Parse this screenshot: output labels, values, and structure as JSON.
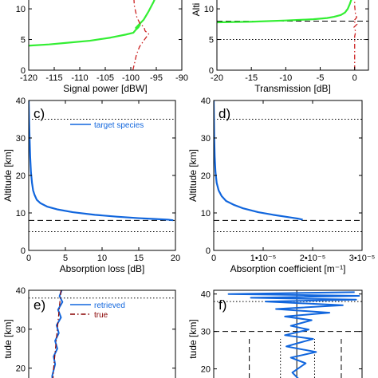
{
  "colors": {
    "green": "#33ee33",
    "blue": "#1166dd",
    "red": "#cc2222",
    "darkred": "#880000",
    "black": "#000000"
  },
  "chart_data": [
    {
      "id": "a",
      "type": "line",
      "letter": "",
      "xlabel": "Signal power [dBW]",
      "ylabel": "",
      "xlim": [
        -120,
        -90
      ],
      "ylim": [
        0,
        13
      ],
      "xticks": [
        -120,
        -115,
        -110,
        -105,
        -100,
        -95,
        -90
      ],
      "yticks": [
        0,
        5,
        10
      ],
      "reflines": [],
      "series": [
        {
          "color": "green",
          "style": "solid",
          "width": 2.2,
          "x": [
            -120,
            -116,
            -112,
            -108,
            -104,
            -101,
            -99.5,
            -99,
            -98.5,
            -98.2,
            -99,
            -98.2,
            -97.5,
            -96.5,
            -95.5,
            -95,
            -94.5
          ],
          "y": [
            4.0,
            4.2,
            4.5,
            4.8,
            5.3,
            5.8,
            6.1,
            6.6,
            7.0,
            7.4,
            6.9,
            7.6,
            8.2,
            9.6,
            11.2,
            12.2,
            13
          ]
        },
        {
          "color": "red",
          "style": "dashdot",
          "width": 1.3,
          "x": [
            -99.6,
            -99.3,
            -98.9,
            -98.3,
            -97.3,
            -96.5,
            -97.2,
            -97.4,
            -98.2,
            -98.8,
            -99.3,
            -99.5
          ],
          "y": [
            0,
            1.0,
            2.5,
            3.8,
            5.0,
            5.9,
            6.4,
            7.0,
            7.6,
            8.6,
            10.5,
            13
          ]
        }
      ]
    },
    {
      "id": "b",
      "type": "line",
      "letter": "",
      "xlabel": "Transmission [dB]",
      "ylabel": "Alti",
      "xlim": [
        -20,
        2
      ],
      "ylim": [
        0,
        13
      ],
      "xticks": [
        -20,
        -15,
        -10,
        -5,
        0
      ],
      "yticks": [
        0,
        5,
        10
      ],
      "reflines": [
        {
          "axis": "y",
          "value": 8,
          "style": "dash"
        },
        {
          "axis": "y",
          "value": 5,
          "style": "dot"
        }
      ],
      "series": [
        {
          "color": "green",
          "style": "solid",
          "width": 2.2,
          "x": [
            -20,
            -15,
            -10,
            -6,
            -4,
            -3,
            -2,
            -1.4,
            -1.0,
            -0.7,
            -0.45,
            -0.25,
            -0.1
          ],
          "y": [
            7.8,
            7.9,
            8.1,
            8.3,
            8.5,
            8.7,
            9.0,
            9.4,
            10.0,
            10.8,
            11.6,
            12.3,
            13
          ]
        },
        {
          "color": "red",
          "style": "dashdot",
          "width": 1.3,
          "x": [
            0,
            0,
            0.15,
            -0.1,
            0.35,
            -0.15,
            0.3,
            0.1,
            0,
            0
          ],
          "y": [
            0,
            5.5,
            6.3,
            7.0,
            7.5,
            8.0,
            8.6,
            9.3,
            10.5,
            13
          ]
        }
      ]
    },
    {
      "id": "c",
      "type": "line",
      "letter": "c)",
      "xlabel": "Absorption loss [dB]",
      "ylabel": "Altitude [km]",
      "xlim": [
        0,
        20
      ],
      "ylim": [
        0,
        40
      ],
      "xticks": [
        0,
        5,
        10,
        15,
        20
      ],
      "yticks": [
        0,
        10,
        20,
        30,
        40
      ],
      "reflines": [
        {
          "axis": "y",
          "value": 35,
          "style": "dot"
        },
        {
          "axis": "y",
          "value": 8,
          "style": "dash"
        },
        {
          "axis": "y",
          "value": 5,
          "style": "dot"
        }
      ],
      "legend": [
        {
          "color": "blue",
          "style": "solid",
          "label": "target species"
        }
      ],
      "series": [
        {
          "color": "blue",
          "style": "solid",
          "width": 2.2,
          "x": [
            0,
            0.05,
            0.12,
            0.2,
            0.3,
            0.45,
            0.6,
            0.8,
            1.1,
            1.6,
            2.5,
            4,
            6,
            9,
            12,
            15,
            17,
            19,
            19.7
          ],
          "y": [
            40,
            35,
            30,
            25,
            21,
            18,
            16,
            14.8,
            13.5,
            12.6,
            11.7,
            10.9,
            10.2,
            9.5,
            9.0,
            8.6,
            8.4,
            8.2,
            8.05
          ]
        }
      ]
    },
    {
      "id": "d",
      "type": "line",
      "letter": "d)",
      "xlabel": "Absorption coefficient [m⁻¹]",
      "ylabel": "Altitude [km]",
      "xlim": [
        0,
        3e-05
      ],
      "ylim": [
        0,
        40
      ],
      "xticks": [
        0,
        1e-05,
        2e-05,
        3e-05
      ],
      "xticklabels": [
        "0",
        "1•10⁻⁵",
        "2•10⁻⁵",
        "3•10⁻⁵"
      ],
      "yticks": [
        0,
        10,
        20,
        30,
        40
      ],
      "reflines": [
        {
          "axis": "y",
          "value": 35,
          "style": "dot"
        },
        {
          "axis": "y",
          "value": 8,
          "style": "dash"
        },
        {
          "axis": "y",
          "value": 5,
          "style": "dot"
        }
      ],
      "series": [
        {
          "color": "blue",
          "style": "solid",
          "width": 2.2,
          "x": [
            0,
            5e-08,
            1e-07,
            2e-07,
            3.5e-07,
            6e-07,
            1e-06,
            1.6e-06,
            2.5e-06,
            4e-06,
            6e-06,
            9e-06,
            1.2e-05,
            1.5e-05,
            1.7e-05,
            1.8e-05
          ],
          "y": [
            40,
            35,
            30,
            25,
            21,
            18,
            16,
            14.5,
            13.2,
            12.2,
            11.2,
            10.2,
            9.5,
            8.9,
            8.5,
            8.2
          ]
        }
      ]
    },
    {
      "id": "e",
      "type": "line",
      "letter": "e)",
      "xlabel": "",
      "ylabel": "tude [km]",
      "xlim": [
        0,
        20
      ],
      "ylim": [
        15,
        40
      ],
      "xticks": [],
      "yticks": [
        20,
        30,
        40
      ],
      "reflines": [
        {
          "axis": "y",
          "value": 38,
          "style": "dot"
        }
      ],
      "legend": [
        {
          "color": "blue",
          "style": "solid",
          "label": "retrieved"
        },
        {
          "color": "darkred",
          "style": "dashdot",
          "label": "true"
        }
      ],
      "series": [
        {
          "color": "blue",
          "style": "solid",
          "width": 2.0,
          "x": [
            4.5,
            4.2,
            4.6,
            4.0,
            4.4,
            3.8,
            4.1,
            3.6,
            3.9,
            3.4,
            3.6,
            3.2,
            3.3
          ],
          "y": [
            40,
            38.5,
            37,
            35,
            33,
            31,
            29,
            27,
            25,
            23,
            21,
            18,
            15
          ]
        },
        {
          "color": "darkred",
          "style": "dashdot",
          "width": 1.2,
          "x": [
            4.4,
            4.3,
            4.2,
            4.1,
            4.0,
            3.9,
            3.8,
            3.7,
            3.6,
            3.5,
            3.4,
            3.3,
            3.2
          ],
          "y": [
            40,
            38,
            36,
            34,
            32,
            30,
            28,
            26,
            24,
            22,
            20,
            17,
            15
          ]
        }
      ]
    },
    {
      "id": "f",
      "type": "line",
      "letter": "f)",
      "xlabel": "",
      "ylabel": "tude [km]",
      "xlim": [
        0,
        10
      ],
      "ylim": [
        15,
        41
      ],
      "xticks": [],
      "yticks": [
        20,
        30,
        40
      ],
      "reflines": [
        {
          "axis": "y",
          "value": 38,
          "style": "dot"
        },
        {
          "axis": "y",
          "value": 30,
          "style": "dash"
        },
        {
          "axis": "x",
          "value": 2.4,
          "style": "dash",
          "from": 15,
          "to": 28
        },
        {
          "axis": "x",
          "value": 4.5,
          "style": "dot",
          "from": 15,
          "to": 28
        },
        {
          "axis": "x",
          "value": 6.8,
          "style": "dot",
          "from": 15,
          "to": 28
        },
        {
          "axis": "x",
          "value": 8.6,
          "style": "dash",
          "from": 15,
          "to": 28
        },
        {
          "axis": "x",
          "value": 5.6,
          "style": "solid",
          "from": 15,
          "to": 41
        }
      ],
      "series": [
        {
          "color": "blue",
          "style": "solid",
          "width": 2.0,
          "x": [
            9.5,
            1.0,
            9.8,
            2.5,
            9.6,
            3.5,
            8.7,
            4.2,
            7.8,
            4.8,
            6.6,
            5.2,
            6.4,
            4.8,
            6.7,
            4.9,
            6.9,
            5.2,
            6.2,
            5.3,
            5.8,
            5.5
          ],
          "y": [
            40.5,
            40,
            39.5,
            39,
            38.5,
            38,
            37,
            36,
            35,
            34,
            33,
            31.5,
            30.5,
            29,
            28,
            26,
            24.5,
            23,
            21.5,
            19,
            17,
            15
          ]
        }
      ]
    }
  ]
}
